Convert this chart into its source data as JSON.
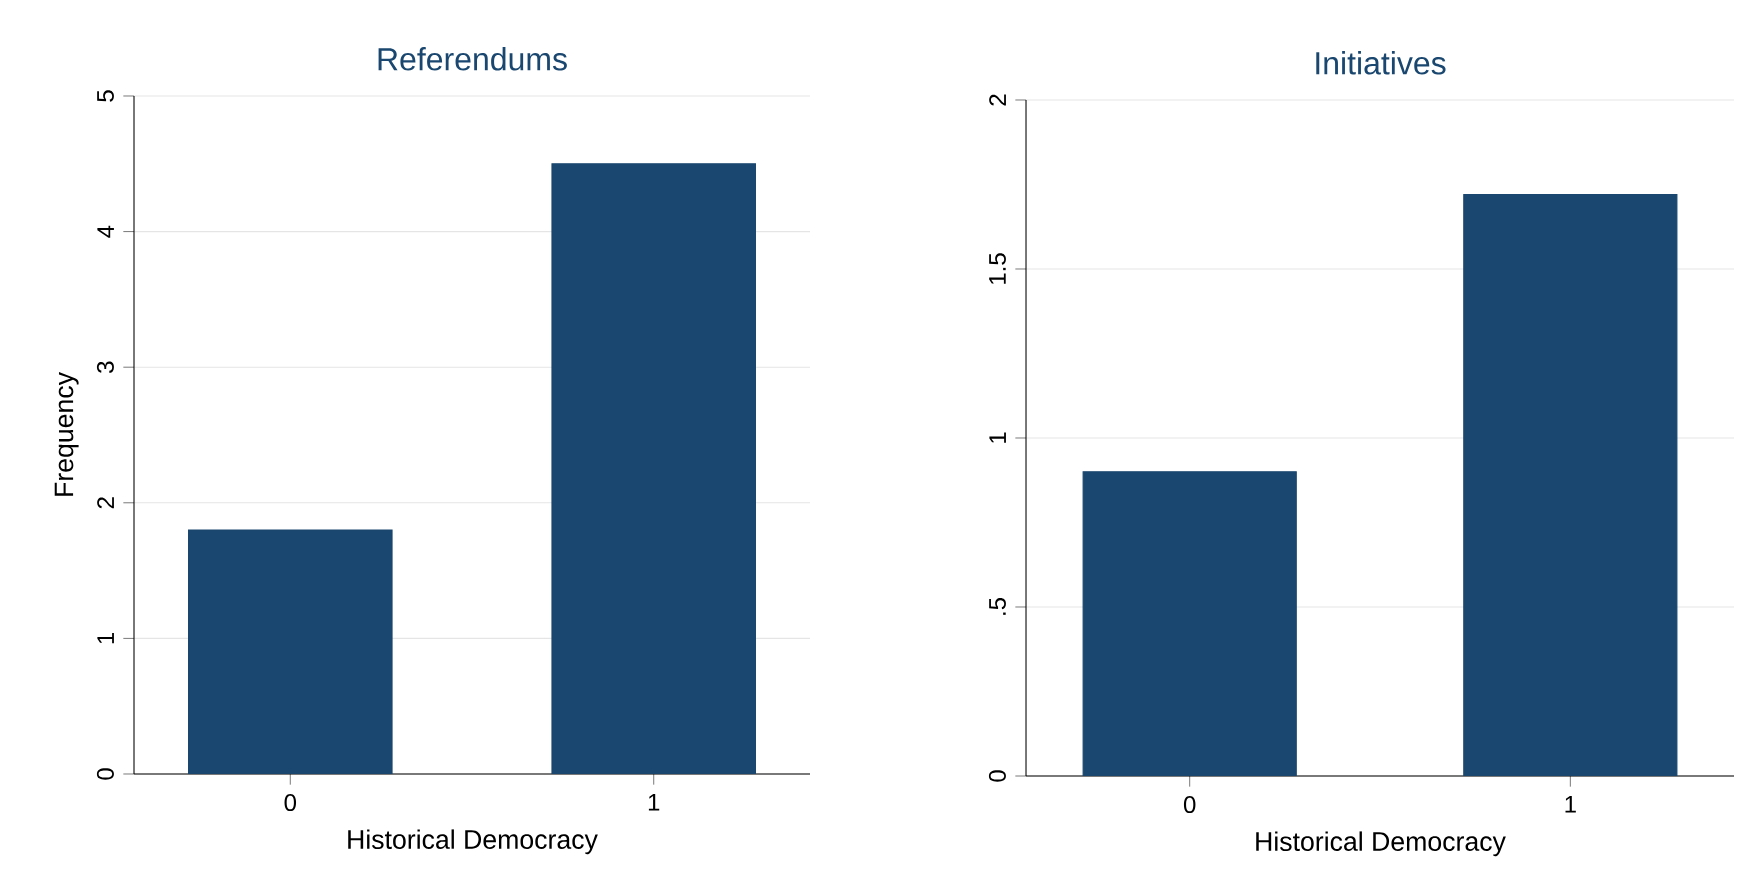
{
  "chart_data": [
    {
      "type": "bar",
      "title": "Referendums",
      "xlabel": "Historical Democracy",
      "ylabel": "Frequency",
      "categories": [
        "0",
        "1"
      ],
      "values": [
        1.8,
        4.5
      ],
      "color": "#1a476f",
      "ylim": [
        0,
        5
      ],
      "yticks": [
        0,
        1,
        2,
        3,
        4,
        5
      ],
      "grid": "y"
    },
    {
      "type": "bar",
      "title": "Initiatives",
      "xlabel": "Historical Democracy",
      "categories": [
        "0",
        "1"
      ],
      "values": [
        0.9,
        1.72
      ],
      "color": "#1a476f",
      "ylim": [
        0,
        2
      ],
      "yticks": [
        0,
        {
          "value": 0.5,
          "label": ".5"
        },
        1,
        1.5,
        2
      ],
      "grid": "y"
    }
  ]
}
